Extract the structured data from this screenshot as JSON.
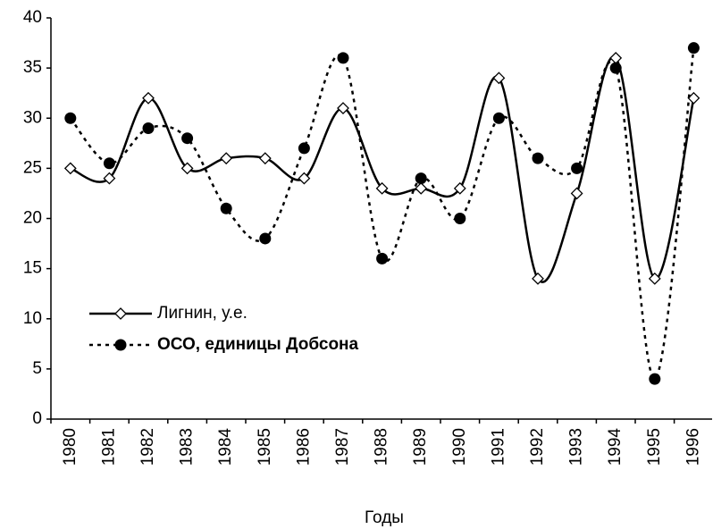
{
  "chart_data": {
    "type": "line",
    "x_label": "Годы",
    "categories": [
      "1980",
      "1981",
      "1982",
      "1983",
      "1984",
      "1985",
      "1986",
      "1987",
      "1988",
      "1989",
      "1990",
      "1991",
      "1992",
      "1993",
      "1994",
      "1995",
      "1996"
    ],
    "series": [
      {
        "name": "Лигнин, у.е.",
        "color": "#000000",
        "marker": "diamond",
        "dash": "solid",
        "values": [
          25,
          24,
          32,
          25,
          26,
          26,
          24,
          31,
          23,
          23,
          23,
          34,
          14,
          22.5,
          36,
          14,
          32
        ]
      },
      {
        "name": "ОСО, единицы Добсона",
        "color": "#000000",
        "marker": "circle",
        "dash": "dotted",
        "values": [
          30,
          25.5,
          29,
          28,
          21,
          18,
          27,
          36,
          16,
          24,
          20,
          30,
          26,
          25,
          35,
          4,
          37
        ]
      }
    ],
    "ylim": [
      0,
      40
    ],
    "yticks": [
      0,
      5,
      10,
      15,
      20,
      25,
      30,
      35,
      40
    ],
    "grid": false,
    "legend": "lower left"
  }
}
